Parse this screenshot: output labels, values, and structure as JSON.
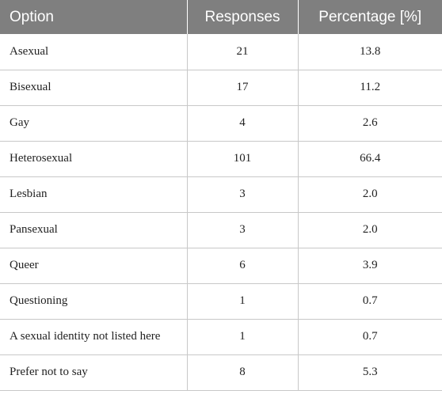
{
  "table": {
    "headers": [
      "Option",
      "Responses",
      "Percentage [%]"
    ],
    "rows": [
      {
        "option": "Asexual",
        "responses": "21",
        "percentage": "13.8"
      },
      {
        "option": "Bisexual",
        "responses": "17",
        "percentage": "11.2"
      },
      {
        "option": "Gay",
        "responses": "4",
        "percentage": "2.6"
      },
      {
        "option": "Heterosexual",
        "responses": "101",
        "percentage": "66.4"
      },
      {
        "option": "Lesbian",
        "responses": "3",
        "percentage": "2.0"
      },
      {
        "option": "Pansexual",
        "responses": "3",
        "percentage": "2.0"
      },
      {
        "option": "Queer",
        "responses": "6",
        "percentage": "3.9"
      },
      {
        "option": "Questioning",
        "responses": "1",
        "percentage": "0.7"
      },
      {
        "option": "A sexual identity not listed here",
        "responses": "1",
        "percentage": "0.7"
      },
      {
        "option": "Prefer not to say",
        "responses": "8",
        "percentage": "5.3"
      }
    ]
  }
}
